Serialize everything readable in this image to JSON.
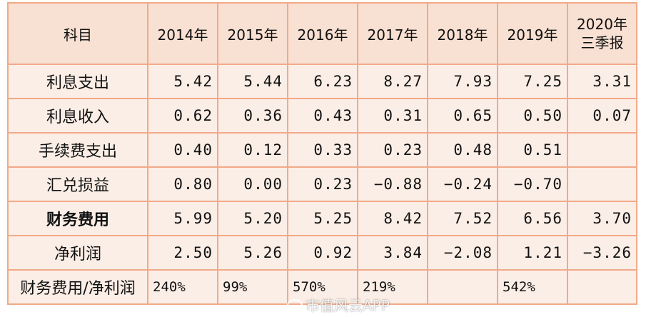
{
  "table": {
    "header": [
      "科目",
      "2014年",
      "2015年",
      "2016年",
      "2017年",
      "2018年",
      "2019年",
      "2020年三季报"
    ],
    "rows": [
      {
        "label": "利息支出",
        "values": [
          "5.42",
          "5.44",
          "6.23",
          "8.27",
          "7.93",
          "7.25",
          "3.31"
        ]
      },
      {
        "label": "利息收入",
        "values": [
          "0.62",
          "0.36",
          "0.43",
          "0.31",
          "0.65",
          "0.50",
          "0.07"
        ]
      },
      {
        "label": "手续费支出",
        "values": [
          "0.40",
          "0.12",
          "0.33",
          "0.23",
          "0.48",
          "0.51",
          ""
        ]
      },
      {
        "label": "汇兑损益",
        "values": [
          "0.80",
          "0.00",
          "0.23",
          "−0.88",
          "−0.24",
          "−0.70",
          ""
        ]
      },
      {
        "label": "财务费用",
        "values": [
          "5.99",
          "5.20",
          "5.25",
          "8.42",
          "7.52",
          "6.56",
          "3.70"
        ]
      },
      {
        "label": "净利润",
        "values": [
          "2.50",
          "5.26",
          "0.92",
          "3.84",
          "−2.08",
          "1.21",
          "−3.26"
        ]
      },
      {
        "label": "财务费用/净利润",
        "values": [
          "240%",
          "99%",
          "570%",
          "219%",
          "",
          "542%",
          ""
        ]
      }
    ]
  },
  "watermark": "市值风云APP",
  "colors": {
    "border": "#f2a98a",
    "cell_bg": "#fbeee6",
    "header_bg": "#f8e0d2"
  }
}
